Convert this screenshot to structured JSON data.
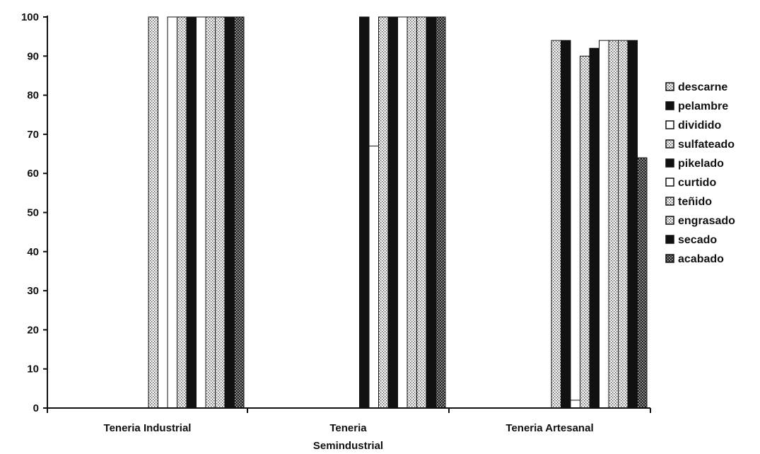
{
  "chart_data": {
    "type": "bar",
    "title": "",
    "xlabel": "",
    "ylabel": "",
    "ylim": [
      0,
      100
    ],
    "yticks": [
      0,
      10,
      20,
      30,
      40,
      50,
      60,
      70,
      80,
      90,
      100
    ],
    "categories": [
      [
        "Teneria Industrial"
      ],
      [
        "Teneria",
        "Semindustrial"
      ],
      [
        "Teneria Artesanal"
      ]
    ],
    "series": [
      {
        "name": "descarne",
        "color": "#f2f2f2",
        "pattern": "dots",
        "values": [
          100,
          0,
          94
        ]
      },
      {
        "name": "pelambre",
        "color": "#111111",
        "pattern": "solid",
        "values": [
          0,
          100,
          94
        ]
      },
      {
        "name": "dividido",
        "color": "#ffffff",
        "pattern": "plain",
        "values": [
          100,
          67,
          2
        ]
      },
      {
        "name": "sulfateado",
        "color": "#f2f2f2",
        "pattern": "dots",
        "values": [
          100,
          100,
          90
        ]
      },
      {
        "name": "pikelado",
        "color": "#111111",
        "pattern": "solid",
        "values": [
          100,
          100,
          92
        ]
      },
      {
        "name": "curtido",
        "color": "#ffffff",
        "pattern": "plain",
        "values": [
          100,
          100,
          94
        ]
      },
      {
        "name": "teñido",
        "color": "#f2f2f2",
        "pattern": "dots",
        "values": [
          100,
          100,
          94
        ]
      },
      {
        "name": "engrasado",
        "color": "#f2f2f2",
        "pattern": "dots",
        "values": [
          100,
          100,
          94
        ]
      },
      {
        "name": "secado",
        "color": "#111111",
        "pattern": "solid",
        "values": [
          100,
          100,
          94
        ]
      },
      {
        "name": "acabado",
        "color": "#333333",
        "pattern": "dots",
        "values": [
          100,
          100,
          64
        ]
      }
    ],
    "grid": false,
    "legend_position": "right"
  }
}
